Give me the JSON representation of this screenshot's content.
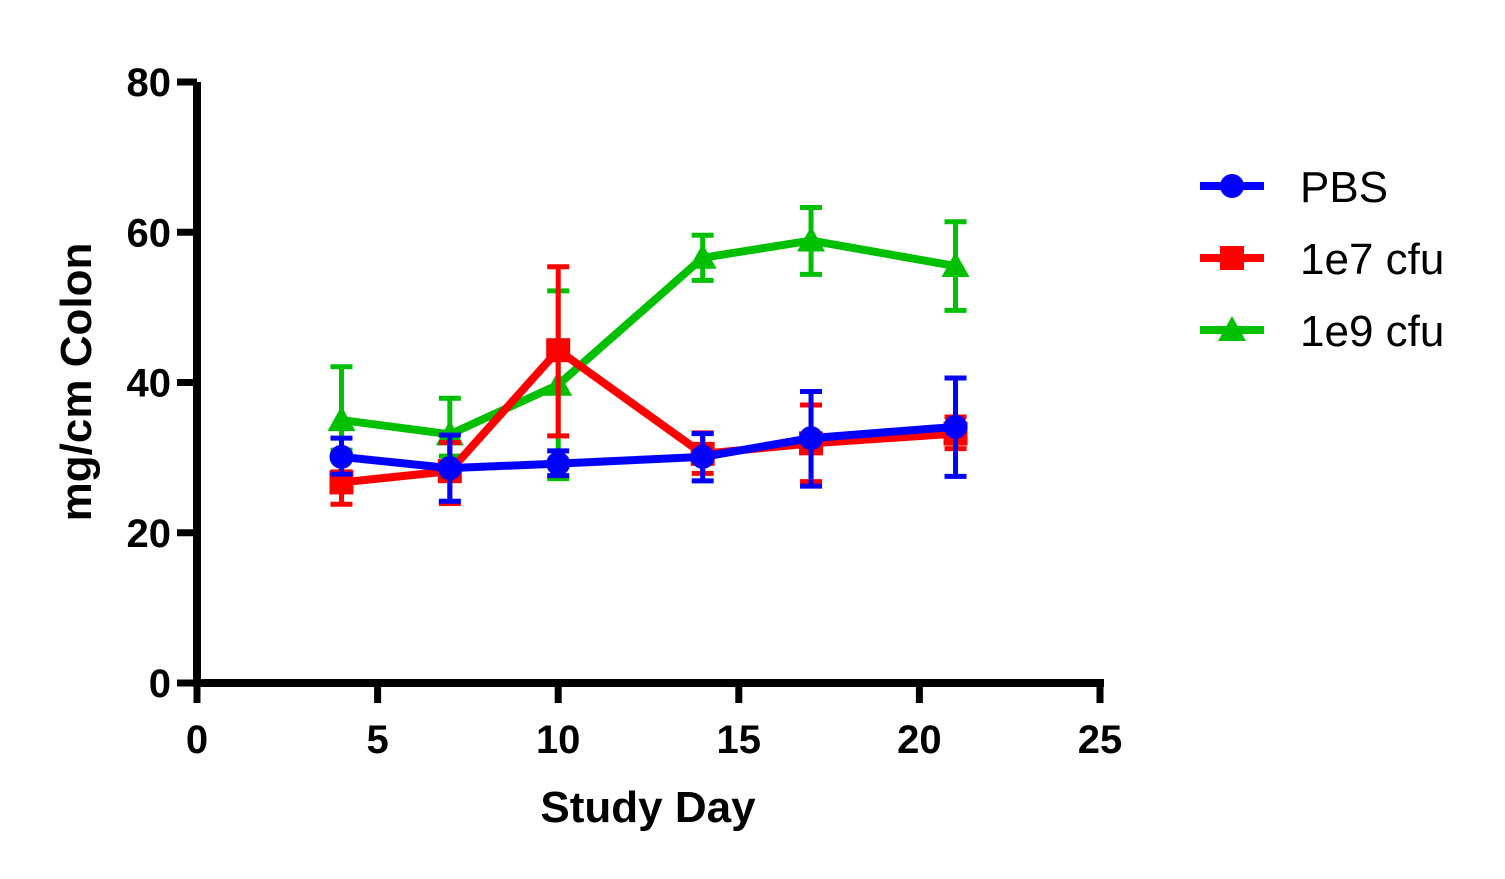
{
  "chart_data": {
    "type": "line",
    "title": "",
    "xlabel": "Study Day",
    "ylabel": "mg/cm Colon",
    "xlim": [
      0,
      25
    ],
    "ylim": [
      0,
      80
    ],
    "xticks": [
      "0",
      "5",
      "10",
      "15",
      "20",
      "25"
    ],
    "yticks": [
      "0",
      "20",
      "40",
      "60",
      "80"
    ],
    "grid": false,
    "legend_position": "right",
    "series": [
      {
        "name": "PBS",
        "color": "#0000ff",
        "marker": "circle",
        "x": [
          4,
          7,
          10,
          14,
          17,
          21
        ],
        "y": [
          30.1,
          28.6,
          29.2,
          30.1,
          32.6,
          34.1
        ],
        "err_upper": [
          32.6,
          33.0,
          30.9,
          33.2,
          38.8,
          40.6
        ],
        "err_lower": [
          27.8,
          24.2,
          27.6,
          26.9,
          26.2,
          27.5
        ]
      },
      {
        "name": "1e7 cfu",
        "color": "#ff0000",
        "marker": "square",
        "x": [
          4,
          7,
          10,
          14,
          17,
          21
        ],
        "y": [
          26.7,
          28.2,
          44.3,
          30.5,
          31.9,
          33.2
        ],
        "err_upper": [
          28.1,
          32.0,
          55.4,
          33.3,
          37.0,
          35.4
        ],
        "err_lower": [
          23.8,
          23.9,
          32.9,
          27.9,
          26.8,
          31.2
        ]
      },
      {
        "name": "1e9 cfu",
        "color": "#00c000",
        "marker": "triangle",
        "x": [
          4,
          7,
          10,
          14,
          17,
          21
        ],
        "y": [
          35.0,
          33.1,
          39.7,
          56.6,
          58.9,
          55.5
        ],
        "err_upper": [
          42.1,
          37.9,
          52.2,
          59.6,
          63.3,
          61.4
        ],
        "err_lower": [
          31.0,
          30.2,
          27.2,
          53.6,
          54.4,
          49.6
        ]
      }
    ]
  }
}
